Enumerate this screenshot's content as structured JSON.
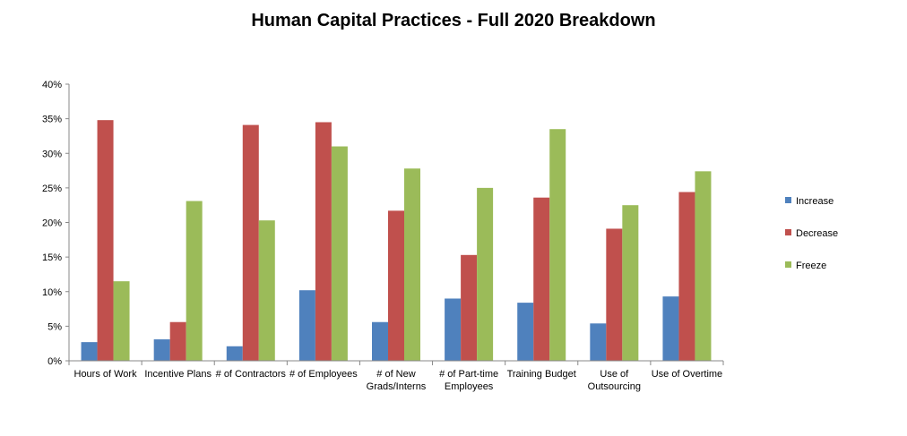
{
  "chart_data": {
    "type": "bar",
    "title": "Human Capital Practices - Full 2020 Breakdown",
    "xlabel": "",
    "ylabel": "",
    "ylim": [
      0,
      40
    ],
    "yticks": [
      "0%",
      "5%",
      "10%",
      "15%",
      "20%",
      "25%",
      "30%",
      "35%",
      "40%"
    ],
    "grid": false,
    "legend_position": "right",
    "categories": [
      [
        "Hours of Work"
      ],
      [
        "Incentive Plans"
      ],
      [
        "# of Contractors"
      ],
      [
        "# of Employees"
      ],
      [
        "# of New",
        "Grads/Interns"
      ],
      [
        "# of Part-time",
        "Employees"
      ],
      [
        "Training Budget"
      ],
      [
        "Use of",
        "Outsourcing"
      ],
      [
        "Use of Overtime"
      ]
    ],
    "series": [
      {
        "name": "Increase",
        "color": "#4F81BD",
        "values": [
          2.7,
          3.1,
          2.1,
          10.2,
          5.6,
          9.0,
          8.4,
          5.4,
          9.3
        ]
      },
      {
        "name": "Decrease",
        "color": "#C0504D",
        "values": [
          34.8,
          5.6,
          34.1,
          34.5,
          21.7,
          15.3,
          23.6,
          19.1,
          24.4
        ]
      },
      {
        "name": "Freeze",
        "color": "#9BBB59",
        "values": [
          11.5,
          23.1,
          20.3,
          31.0,
          27.8,
          25.0,
          33.5,
          22.5,
          27.4
        ]
      }
    ]
  }
}
